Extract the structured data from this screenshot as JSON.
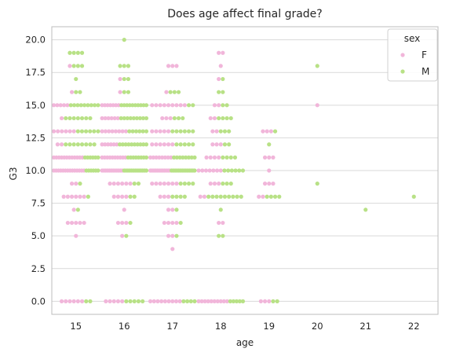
{
  "chart_data": {
    "type": "scatter",
    "title": "Does age affect final grade?",
    "xlabel": "age",
    "ylabel": "G3",
    "xlim": [
      14.5,
      22.5
    ],
    "ylim": [
      -1,
      21
    ],
    "xticks": [
      "15",
      "16",
      "17",
      "18",
      "19",
      "20",
      "21",
      "22"
    ],
    "yticks": [
      "0.0",
      "2.5",
      "5.0",
      "7.5",
      "10.0",
      "12.5",
      "15.0",
      "17.5",
      "20.0"
    ],
    "grid": "horizontal",
    "legend": {
      "title": "sex",
      "placement": "top-right"
    },
    "series": [
      {
        "name": "F",
        "color": "#f1b6da",
        "points": [
          {
            "x": 15,
            "y": 0,
            "n": 6
          },
          {
            "x": 15,
            "y": 5,
            "n": 1
          },
          {
            "x": 15,
            "y": 6,
            "n": 5
          },
          {
            "x": 15,
            "y": 7,
            "n": 1
          },
          {
            "x": 15,
            "y": 8,
            "n": 6
          },
          {
            "x": 15,
            "y": 9,
            "n": 2
          },
          {
            "x": 15,
            "y": 10,
            "n": 14
          },
          {
            "x": 15,
            "y": 11,
            "n": 12
          },
          {
            "x": 15,
            "y": 12,
            "n": 2
          },
          {
            "x": 15,
            "y": 13,
            "n": 6
          },
          {
            "x": 15,
            "y": 14,
            "n": 1
          },
          {
            "x": 15,
            "y": 15,
            "n": 5
          },
          {
            "x": 15,
            "y": 16,
            "n": 1
          },
          {
            "x": 15,
            "y": 18,
            "n": 1
          },
          {
            "x": 16,
            "y": 0,
            "n": 5
          },
          {
            "x": 16,
            "y": 5,
            "n": 1
          },
          {
            "x": 16,
            "y": 6,
            "n": 3
          },
          {
            "x": 16,
            "y": 7,
            "n": 1
          },
          {
            "x": 16,
            "y": 8,
            "n": 4
          },
          {
            "x": 16,
            "y": 9,
            "n": 6
          },
          {
            "x": 16,
            "y": 10,
            "n": 12
          },
          {
            "x": 16,
            "y": 11,
            "n": 10
          },
          {
            "x": 16,
            "y": 12,
            "n": 6
          },
          {
            "x": 16,
            "y": 13,
            "n": 8
          },
          {
            "x": 16,
            "y": 14,
            "n": 6
          },
          {
            "x": 16,
            "y": 15,
            "n": 7
          },
          {
            "x": 16,
            "y": 16,
            "n": 1
          },
          {
            "x": 16,
            "y": 17,
            "n": 1
          },
          {
            "x": 17,
            "y": 0,
            "n": 9
          },
          {
            "x": 17,
            "y": 4,
            "n": 1
          },
          {
            "x": 17,
            "y": 5,
            "n": 2
          },
          {
            "x": 17,
            "y": 6,
            "n": 4
          },
          {
            "x": 17,
            "y": 7,
            "n": 2
          },
          {
            "x": 17,
            "y": 8,
            "n": 3
          },
          {
            "x": 17,
            "y": 9,
            "n": 7
          },
          {
            "x": 17,
            "y": 10,
            "n": 12
          },
          {
            "x": 17,
            "y": 11,
            "n": 8
          },
          {
            "x": 17,
            "y": 12,
            "n": 6
          },
          {
            "x": 17,
            "y": 13,
            "n": 5
          },
          {
            "x": 17,
            "y": 14,
            "n": 3
          },
          {
            "x": 17,
            "y": 15,
            "n": 9
          },
          {
            "x": 17,
            "y": 16,
            "n": 1
          },
          {
            "x": 17,
            "y": 18,
            "n": 3
          },
          {
            "x": 18,
            "y": 0,
            "n": 10
          },
          {
            "x": 18,
            "y": 6,
            "n": 2
          },
          {
            "x": 18,
            "y": 8,
            "n": 2
          },
          {
            "x": 18,
            "y": 9,
            "n": 3
          },
          {
            "x": 18,
            "y": 10,
            "n": 7
          },
          {
            "x": 18,
            "y": 11,
            "n": 4
          },
          {
            "x": 18,
            "y": 12,
            "n": 3
          },
          {
            "x": 18,
            "y": 13,
            "n": 2
          },
          {
            "x": 18,
            "y": 14,
            "n": 2
          },
          {
            "x": 18,
            "y": 15,
            "n": 2
          },
          {
            "x": 18,
            "y": 17,
            "n": 1
          },
          {
            "x": 18,
            "y": 18,
            "n": 1
          },
          {
            "x": 18,
            "y": 19,
            "n": 2
          },
          {
            "x": 19,
            "y": 0,
            "n": 3
          },
          {
            "x": 19,
            "y": 8,
            "n": 2
          },
          {
            "x": 19,
            "y": 9,
            "n": 3
          },
          {
            "x": 19,
            "y": 10,
            "n": 1
          },
          {
            "x": 19,
            "y": 11,
            "n": 3
          },
          {
            "x": 19,
            "y": 13,
            "n": 3
          },
          {
            "x": 20,
            "y": 15,
            "n": 1
          }
        ]
      },
      {
        "name": "M",
        "color": "#b8e186",
        "points": [
          {
            "x": 15,
            "y": 0,
            "n": 2
          },
          {
            "x": 15,
            "y": 7,
            "n": 1
          },
          {
            "x": 15,
            "y": 8,
            "n": 1
          },
          {
            "x": 15,
            "y": 9,
            "n": 1
          },
          {
            "x": 15,
            "y": 10,
            "n": 6
          },
          {
            "x": 15,
            "y": 11,
            "n": 6
          },
          {
            "x": 15,
            "y": 12,
            "n": 8
          },
          {
            "x": 15,
            "y": 13,
            "n": 6
          },
          {
            "x": 15,
            "y": 14,
            "n": 7
          },
          {
            "x": 15,
            "y": 15,
            "n": 9
          },
          {
            "x": 15,
            "y": 16,
            "n": 2
          },
          {
            "x": 15,
            "y": 17,
            "n": 1
          },
          {
            "x": 15,
            "y": 18,
            "n": 3
          },
          {
            "x": 15,
            "y": 19,
            "n": 4
          },
          {
            "x": 16,
            "y": 0,
            "n": 5
          },
          {
            "x": 16,
            "y": 5,
            "n": 1
          },
          {
            "x": 16,
            "y": 6,
            "n": 1
          },
          {
            "x": 16,
            "y": 8,
            "n": 2
          },
          {
            "x": 16,
            "y": 9,
            "n": 2
          },
          {
            "x": 16,
            "y": 10,
            "n": 13
          },
          {
            "x": 16,
            "y": 11,
            "n": 8
          },
          {
            "x": 16,
            "y": 12,
            "n": 10
          },
          {
            "x": 16,
            "y": 13,
            "n": 6
          },
          {
            "x": 16,
            "y": 14,
            "n": 9
          },
          {
            "x": 16,
            "y": 15,
            "n": 10
          },
          {
            "x": 16,
            "y": 16,
            "n": 2
          },
          {
            "x": 16,
            "y": 17,
            "n": 2
          },
          {
            "x": 16,
            "y": 18,
            "n": 3
          },
          {
            "x": 16,
            "y": 20,
            "n": 1
          },
          {
            "x": 17,
            "y": 0,
            "n": 4
          },
          {
            "x": 17,
            "y": 5,
            "n": 1
          },
          {
            "x": 17,
            "y": 6,
            "n": 1
          },
          {
            "x": 17,
            "y": 7,
            "n": 1
          },
          {
            "x": 17,
            "y": 8,
            "n": 4
          },
          {
            "x": 17,
            "y": 9,
            "n": 4
          },
          {
            "x": 17,
            "y": 10,
            "n": 14
          },
          {
            "x": 17,
            "y": 11,
            "n": 8
          },
          {
            "x": 17,
            "y": 12,
            "n": 5
          },
          {
            "x": 17,
            "y": 13,
            "n": 6
          },
          {
            "x": 17,
            "y": 14,
            "n": 3
          },
          {
            "x": 17,
            "y": 15,
            "n": 2
          },
          {
            "x": 17,
            "y": 16,
            "n": 3
          },
          {
            "x": 18,
            "y": 0,
            "n": 5
          },
          {
            "x": 18,
            "y": 5,
            "n": 2
          },
          {
            "x": 18,
            "y": 7,
            "n": 1
          },
          {
            "x": 18,
            "y": 8,
            "n": 9
          },
          {
            "x": 18,
            "y": 9,
            "n": 3
          },
          {
            "x": 18,
            "y": 10,
            "n": 6
          },
          {
            "x": 18,
            "y": 11,
            "n": 4
          },
          {
            "x": 18,
            "y": 12,
            "n": 2
          },
          {
            "x": 18,
            "y": 13,
            "n": 3
          },
          {
            "x": 18,
            "y": 14,
            "n": 4
          },
          {
            "x": 18,
            "y": 15,
            "n": 2
          },
          {
            "x": 18,
            "y": 16,
            "n": 2
          },
          {
            "x": 18,
            "y": 17,
            "n": 1
          },
          {
            "x": 19,
            "y": 0,
            "n": 2
          },
          {
            "x": 19,
            "y": 8,
            "n": 4
          },
          {
            "x": 19,
            "y": 12,
            "n": 1
          },
          {
            "x": 19,
            "y": 13,
            "n": 1
          },
          {
            "x": 20,
            "y": 9,
            "n": 1
          },
          {
            "x": 20,
            "y": 18,
            "n": 1
          },
          {
            "x": 21,
            "y": 7,
            "n": 1
          },
          {
            "x": 22,
            "y": 8,
            "n": 1
          }
        ]
      }
    ]
  }
}
